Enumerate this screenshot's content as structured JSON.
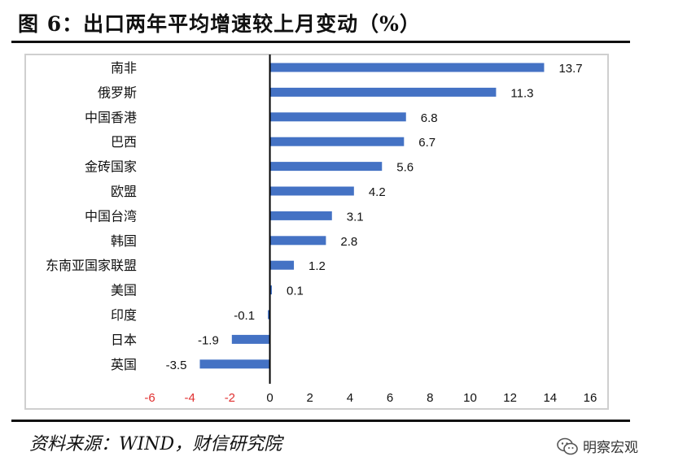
{
  "title": "图 6：出口两年平均增速较上月变动（%）",
  "source": "资料来源：WIND，财信研究院",
  "watermark": "明察宏观",
  "colors": {
    "bar": "#4472C4",
    "negative_tick": "#E03030",
    "axis": "#000000"
  },
  "chart_data": {
    "type": "bar",
    "orientation": "horizontal",
    "title": "",
    "xlabel": "",
    "ylabel": "",
    "categories": [
      "南非",
      "俄罗斯",
      "中国香港",
      "巴西",
      "金砖国家",
      "欧盟",
      "中国台湾",
      "韩国",
      "东南亚国家联盟",
      "美国",
      "印度",
      "日本",
      "英国"
    ],
    "values": [
      13.7,
      11.3,
      6.8,
      6.7,
      5.6,
      4.2,
      3.1,
      2.8,
      1.2,
      0.1,
      -0.1,
      -1.9,
      -3.5
    ],
    "value_labels": [
      "13.7",
      "11.3",
      "6.8",
      "6.7",
      "5.6",
      "4.2",
      "3.1",
      "2.8",
      "1.2",
      "0.1",
      "-0.1",
      "-1.9",
      "-3.5"
    ],
    "xlim": [
      -6,
      16
    ],
    "xticks": [
      -6,
      -4,
      -2,
      0,
      2,
      4,
      6,
      8,
      10,
      12,
      14,
      16
    ],
    "xtick_labels": [
      "-6",
      "-4",
      "-2",
      "0",
      "2",
      "4",
      "6",
      "8",
      "10",
      "12",
      "14",
      "16"
    ],
    "grid": false,
    "legend": "none"
  }
}
